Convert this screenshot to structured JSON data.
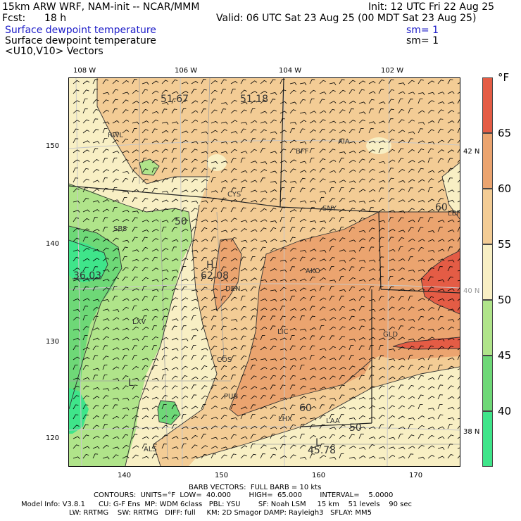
{
  "header": {
    "model_title": "15km ARW WRF, NAM-init -- NCAR/MMM",
    "init": "Init: 12 UTC Fri 22 Aug 25",
    "fcst_label": "Fcst:",
    "fcst_value": "18 h",
    "valid": "Valid: 06 UTC Sat 23 Aug 25 (00 MDT Sat 23 Aug 25)",
    "field1": "Surface dewpoint temperature",
    "field1_sm": "sm= 1",
    "field2": "Surface dewpoint temperature",
    "field2_sm": "sm= 1",
    "field3": "<U10,V10> Vectors"
  },
  "map": {
    "lon_labels": [
      "108 W",
      "106 W",
      "104 W",
      "102 W"
    ],
    "lat_labels_right": [
      "42 N",
      "40 N",
      "38 N"
    ],
    "grid_y_labels": [
      "150",
      "140",
      "130",
      "120"
    ],
    "grid_x_labels": [
      "140",
      "150",
      "160",
      "170"
    ],
    "stations": [
      "RWL",
      "BFF",
      "AIA",
      "CYS",
      "SNY",
      "LBF",
      "SBS",
      "AKO",
      "DEN",
      "LXV",
      "LIC",
      "GLD",
      "COS",
      "PUB",
      "LHX",
      "LAA",
      "ALS",
      "L",
      "H",
      "L"
    ],
    "annotations": [
      "51.67",
      "51.18",
      "50",
      "60",
      "36.03",
      "62.08",
      "60",
      "50",
      "45.78"
    ],
    "colors": {
      "c35_40": "#3fe58a",
      "c40_45": "#6ed877",
      "c45_50": "#b0e48a",
      "c50_55": "#f8efc4",
      "c55_60": "#f3cc95",
      "c60_65": "#eba46f",
      "c65_70": "#e45c45"
    }
  },
  "colorbar": {
    "unit": "°F",
    "labels": [
      "65",
      "60",
      "55",
      "50",
      "45",
      "40"
    ]
  },
  "footer": {
    "barb": "BARB VECTORS:  FULL BARB = 10 kts",
    "contours": "CONTOURS:  UNITS=°F  LOW=  40.000        HIGH=  65.000        INTERVAL=    5.0000",
    "model_info1": "Model Info: V3.8.1      CU: G-F Ens  MP: WDM 6class   PBL: YSU        SF: Noah LSM     15 km    51 levels    90 sec",
    "model_info2": "LW: RRTMG    SW: RRTMG   DIFF: full     KM: 2D Smagor DAMP: Rayleigh3   SFLAY: MM5"
  }
}
